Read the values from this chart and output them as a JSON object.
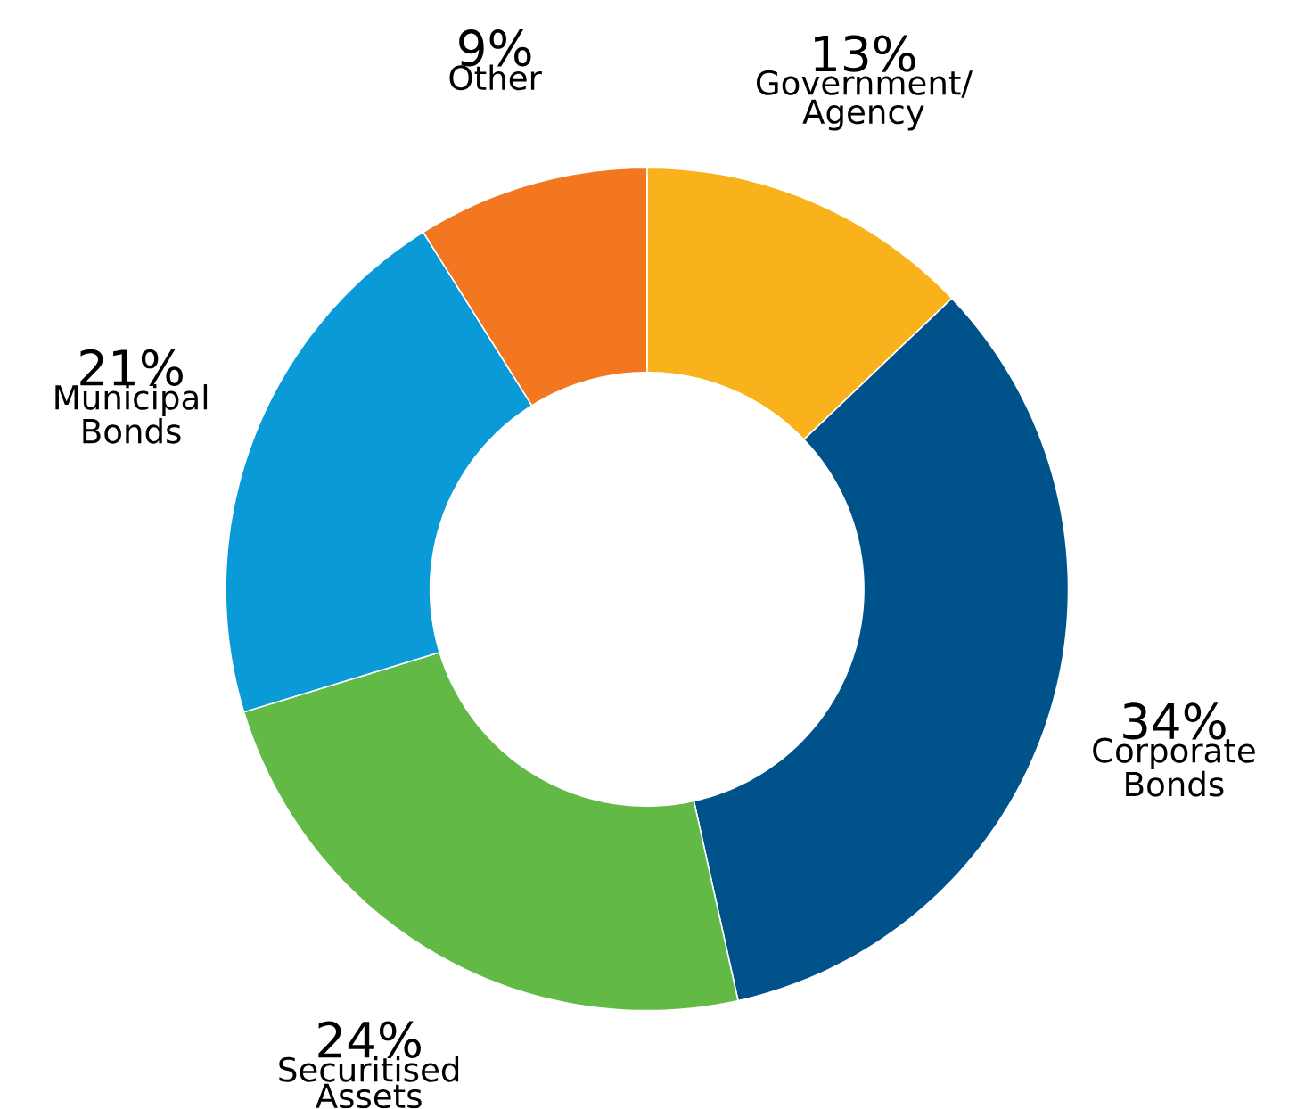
{
  "chart_data": {
    "type": "donut",
    "categories": [
      "Government/ Agency",
      "Corporate Bonds",
      "Securitised Assets",
      "Municipal Bonds",
      "Other"
    ],
    "values": [
      13,
      34,
      24,
      21,
      9
    ],
    "value_labels": [
      "13%",
      "34%",
      "24%",
      "21%",
      "9%"
    ],
    "colors": [
      "#f9b21b",
      "#00538a",
      "#62b946",
      "#0a9ad8",
      "#f37721"
    ]
  }
}
